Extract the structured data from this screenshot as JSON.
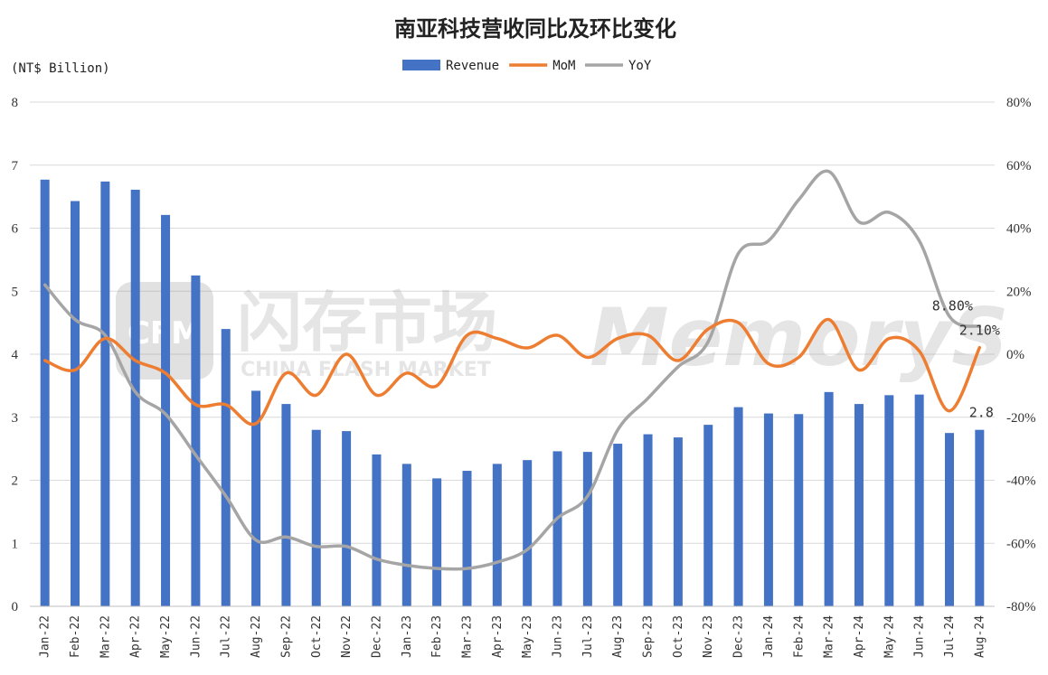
{
  "chart_data": {
    "type": "bar+line",
    "title": "南亚科技营收同比及环比变化",
    "unit_label": "(NT$ Billion)",
    "categories": [
      "Jan-22",
      "Feb-22",
      "Mar-22",
      "Apr-22",
      "May-22",
      "Jun-22",
      "Jul-22",
      "Aug-22",
      "Sep-22",
      "Oct-22",
      "Nov-22",
      "Dec-22",
      "Jan-23",
      "Feb-23",
      "Mar-23",
      "Apr-23",
      "May-23",
      "Jun-23",
      "Jul-23",
      "Aug-23",
      "Sep-23",
      "Oct-23",
      "Nov-23",
      "Dec-23",
      "Jan-24",
      "Feb-24",
      "Mar-24",
      "Apr-24",
      "May-24",
      "Jun-24",
      "Jul-24",
      "Aug-24"
    ],
    "series": [
      {
        "name": "Revenue",
        "type": "bar",
        "axis": "left",
        "color": "#4472c4",
        "values": [
          6.77,
          6.43,
          6.74,
          6.61,
          6.21,
          5.25,
          4.4,
          3.42,
          3.21,
          2.8,
          2.78,
          2.41,
          2.26,
          2.03,
          2.15,
          2.26,
          2.32,
          2.46,
          2.45,
          2.58,
          2.73,
          2.68,
          2.88,
          3.16,
          3.06,
          3.05,
          3.4,
          3.21,
          3.35,
          3.36,
          2.75,
          2.8
        ]
      },
      {
        "name": "MoM",
        "type": "line",
        "axis": "right",
        "color": "#ed7d31",
        "values": [
          -2,
          -5,
          5,
          -2,
          -6,
          -16,
          -16,
          -22,
          -6,
          -13,
          0,
          -13,
          -6,
          -10,
          6,
          5,
          2,
          6,
          -1,
          5,
          6,
          -2,
          8,
          10,
          -3,
          -1,
          11,
          -5,
          5,
          1,
          -18,
          2.1
        ]
      },
      {
        "name": "YoY",
        "type": "line",
        "axis": "right",
        "color": "#a5a5a5",
        "values": [
          22,
          11,
          6,
          -12,
          -19,
          -32,
          -45,
          -59,
          -58,
          -61,
          -61,
          -65,
          -67,
          -68,
          -68,
          -66,
          -62,
          -52,
          -45,
          -24,
          -14,
          -4,
          4,
          32,
          36,
          49,
          58,
          42,
          45,
          36,
          12,
          8.8
        ]
      }
    ],
    "y_left": {
      "min": 0,
      "max": 8,
      "ticks": [
        "0",
        "1",
        "2",
        "3",
        "4",
        "5",
        "6",
        "7",
        "8"
      ]
    },
    "y_right": {
      "min": -80,
      "max": 80,
      "ticks": [
        "-80%",
        "-60%",
        "-40%",
        "-20%",
        "0%",
        "20%",
        "40%",
        "60%",
        "80%"
      ]
    },
    "data_labels": [
      {
        "series": "Revenue",
        "index": 31,
        "text": "2.8"
      },
      {
        "series": "MoM",
        "index": 31,
        "text": "2.10%"
      },
      {
        "series": "YoY",
        "index": 31,
        "text": "8.80%"
      }
    ],
    "grid": true,
    "legend_position": "top-center"
  },
  "watermark": {
    "badge": "CFM",
    "cn": "闪存市场",
    "en": "CHINA FLASH MARKET",
    "brand": "MemoryS"
  }
}
